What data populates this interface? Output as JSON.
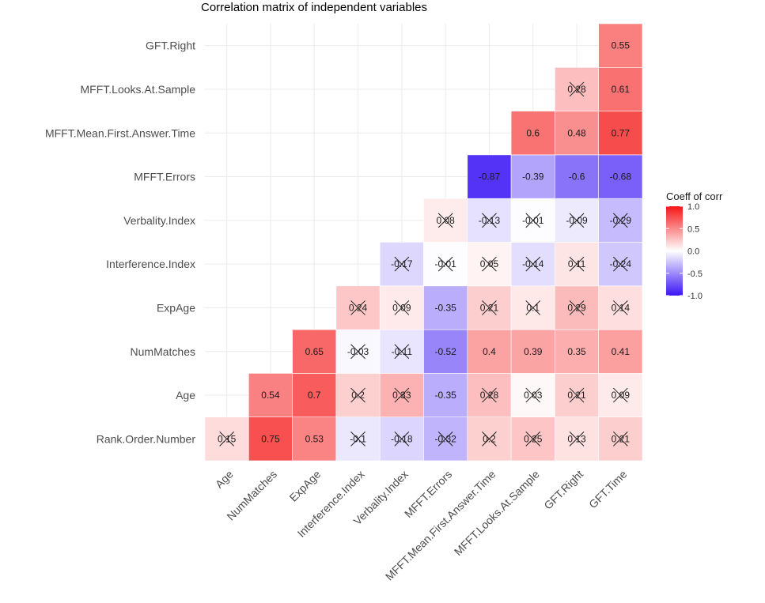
{
  "chart_data": {
    "type": "heatmap",
    "title": "Correlation matrix of independent variables",
    "variables": [
      "Rank.Order.Number",
      "Age",
      "NumMatches",
      "ExpAge",
      "Interference.Index",
      "Verbality.Index",
      "MFFT.Errors",
      "MFFT.Mean.First.Answer.Time",
      "MFFT.Looks.At.Sample",
      "GFT.Right",
      "GFT.Time"
    ],
    "x_categories": [
      "Age",
      "NumMatches",
      "ExpAge",
      "Interference.Index",
      "Verbality.Index",
      "MFFT.Errors",
      "MFFT.Mean.First.Answer.Time",
      "MFFT.Looks.At.Sample",
      "GFT.Right",
      "GFT.Time"
    ],
    "y_categories": [
      "Rank.Order.Number",
      "Age",
      "NumMatches",
      "ExpAge",
      "Interference.Index",
      "Verbality.Index",
      "MFFT.Errors",
      "MFFT.Mean.First.Answer.Time",
      "MFFT.Looks.At.Sample",
      "GFT.Right"
    ],
    "cells": [
      {
        "y": "Rank.Order.Number",
        "x": "Age",
        "label": "0.15",
        "value": 0.15,
        "crossed": true
      },
      {
        "y": "Rank.Order.Number",
        "x": "NumMatches",
        "label": "0.75",
        "value": 0.75,
        "crossed": false
      },
      {
        "y": "Rank.Order.Number",
        "x": "ExpAge",
        "label": "0.53",
        "value": 0.53,
        "crossed": false
      },
      {
        "y": "Rank.Order.Number",
        "x": "Interference.Index",
        "label": "-0.1",
        "value": -0.1,
        "crossed": true
      },
      {
        "y": "Rank.Order.Number",
        "x": "Verbality.Index",
        "label": "-0.18",
        "value": -0.18,
        "crossed": true
      },
      {
        "y": "Rank.Order.Number",
        "x": "MFFT.Errors",
        "label": "-0.32",
        "value": -0.32,
        "crossed": true
      },
      {
        "y": "Rank.Order.Number",
        "x": "MFFT.Mean.First.Answer.Time",
        "label": "0.2",
        "value": 0.2,
        "crossed": true
      },
      {
        "y": "Rank.Order.Number",
        "x": "MFFT.Looks.At.Sample",
        "label": "0.25",
        "value": 0.25,
        "crossed": true
      },
      {
        "y": "Rank.Order.Number",
        "x": "GFT.Right",
        "label": "0.13",
        "value": 0.13,
        "crossed": true
      },
      {
        "y": "Rank.Order.Number",
        "x": "GFT.Time",
        "label": "0.21",
        "value": 0.21,
        "crossed": true
      },
      {
        "y": "Age",
        "x": "NumMatches",
        "label": "0.54",
        "value": 0.54,
        "crossed": false
      },
      {
        "y": "Age",
        "x": "ExpAge",
        "label": "0.7",
        "value": 0.7,
        "crossed": false
      },
      {
        "y": "Age",
        "x": "Interference.Index",
        "label": "0.2",
        "value": 0.2,
        "crossed": true
      },
      {
        "y": "Age",
        "x": "Verbality.Index",
        "label": "0.33",
        "value": 0.33,
        "crossed": true
      },
      {
        "y": "Age",
        "x": "MFFT.Errors",
        "label": "-0.35",
        "value": -0.35,
        "crossed": false
      },
      {
        "y": "Age",
        "x": "MFFT.Mean.First.Answer.Time",
        "label": "0.28",
        "value": 0.28,
        "crossed": true
      },
      {
        "y": "Age",
        "x": "MFFT.Looks.At.Sample",
        "label": "0.03",
        "value": 0.03,
        "crossed": true
      },
      {
        "y": "Age",
        "x": "GFT.Right",
        "label": "0.21",
        "value": 0.21,
        "crossed": true
      },
      {
        "y": "Age",
        "x": "GFT.Time",
        "label": "0.09",
        "value": 0.09,
        "crossed": true
      },
      {
        "y": "NumMatches",
        "x": "ExpAge",
        "label": "0.65",
        "value": 0.65,
        "crossed": false
      },
      {
        "y": "NumMatches",
        "x": "Interference.Index",
        "label": "-0.03",
        "value": -0.03,
        "crossed": true
      },
      {
        "y": "NumMatches",
        "x": "Verbality.Index",
        "label": "-0.11",
        "value": -0.11,
        "crossed": true
      },
      {
        "y": "NumMatches",
        "x": "MFFT.Errors",
        "label": "-0.52",
        "value": -0.52,
        "crossed": false
      },
      {
        "y": "NumMatches",
        "x": "MFFT.Mean.First.Answer.Time",
        "label": "0.4",
        "value": 0.4,
        "crossed": false
      },
      {
        "y": "NumMatches",
        "x": "MFFT.Looks.At.Sample",
        "label": "0.39",
        "value": 0.39,
        "crossed": false
      },
      {
        "y": "NumMatches",
        "x": "GFT.Right",
        "label": "0.35",
        "value": 0.35,
        "crossed": false
      },
      {
        "y": "NumMatches",
        "x": "GFT.Time",
        "label": "0.41",
        "value": 0.41,
        "crossed": false
      },
      {
        "y": "ExpAge",
        "x": "Interference.Index",
        "label": "0.24",
        "value": 0.24,
        "crossed": true
      },
      {
        "y": "ExpAge",
        "x": "Verbality.Index",
        "label": "0.09",
        "value": 0.09,
        "crossed": true
      },
      {
        "y": "ExpAge",
        "x": "MFFT.Errors",
        "label": "-0.35",
        "value": -0.35,
        "crossed": false
      },
      {
        "y": "ExpAge",
        "x": "MFFT.Mean.First.Answer.Time",
        "label": "0.21",
        "value": 0.21,
        "crossed": true
      },
      {
        "y": "ExpAge",
        "x": "MFFT.Looks.At.Sample",
        "label": "0.1",
        "value": 0.1,
        "crossed": true
      },
      {
        "y": "ExpAge",
        "x": "GFT.Right",
        "label": "0.29",
        "value": 0.29,
        "crossed": true
      },
      {
        "y": "ExpAge",
        "x": "GFT.Time",
        "label": "0.14",
        "value": 0.14,
        "crossed": true
      },
      {
        "y": "Interference.Index",
        "x": "Verbality.Index",
        "label": "-0.17",
        "value": -0.17,
        "crossed": true
      },
      {
        "y": "Interference.Index",
        "x": "MFFT.Errors",
        "label": "-0.01",
        "value": -0.01,
        "crossed": true
      },
      {
        "y": "Interference.Index",
        "x": "MFFT.Mean.First.Answer.Time",
        "label": "0.05",
        "value": 0.05,
        "crossed": true
      },
      {
        "y": "Interference.Index",
        "x": "MFFT.Looks.At.Sample",
        "label": "-0.14",
        "value": -0.14,
        "crossed": true
      },
      {
        "y": "Interference.Index",
        "x": "GFT.Right",
        "label": "0.11",
        "value": 0.11,
        "crossed": true
      },
      {
        "y": "Interference.Index",
        "x": "GFT.Time",
        "label": "-0.24",
        "value": -0.24,
        "crossed": true
      },
      {
        "y": "Verbality.Index",
        "x": "MFFT.Errors",
        "label": "0.08",
        "value": 0.08,
        "crossed": true
      },
      {
        "y": "Verbality.Index",
        "x": "MFFT.Mean.First.Answer.Time",
        "label": "-0.13",
        "value": -0.13,
        "crossed": true
      },
      {
        "y": "Verbality.Index",
        "x": "MFFT.Looks.At.Sample",
        "label": "-0.01",
        "value": -0.01,
        "crossed": true
      },
      {
        "y": "Verbality.Index",
        "x": "GFT.Right",
        "label": "-0.09",
        "value": -0.09,
        "crossed": true
      },
      {
        "y": "Verbality.Index",
        "x": "GFT.Time",
        "label": "-0.29",
        "value": -0.29,
        "crossed": true
      },
      {
        "y": "MFFT.Errors",
        "x": "MFFT.Mean.First.Answer.Time",
        "label": "-0.87",
        "value": -0.87,
        "crossed": false
      },
      {
        "y": "MFFT.Errors",
        "x": "MFFT.Looks.At.Sample",
        "label": "-0.39",
        "value": -0.39,
        "crossed": false
      },
      {
        "y": "MFFT.Errors",
        "x": "GFT.Right",
        "label": "-0.6",
        "value": -0.6,
        "crossed": false
      },
      {
        "y": "MFFT.Errors",
        "x": "GFT.Time",
        "label": "-0.68",
        "value": -0.68,
        "crossed": false
      },
      {
        "y": "MFFT.Mean.First.Answer.Time",
        "x": "MFFT.Looks.At.Sample",
        "label": "0.6",
        "value": 0.6,
        "crossed": false
      },
      {
        "y": "MFFT.Mean.First.Answer.Time",
        "x": "GFT.Right",
        "label": "0.48",
        "value": 0.48,
        "crossed": false
      },
      {
        "y": "MFFT.Mean.First.Answer.Time",
        "x": "GFT.Time",
        "label": "0.77",
        "value": 0.77,
        "crossed": false
      },
      {
        "y": "MFFT.Looks.At.Sample",
        "x": "GFT.Right",
        "label": "0.28",
        "value": 0.28,
        "crossed": true
      },
      {
        "y": "MFFT.Looks.At.Sample",
        "x": "GFT.Time",
        "label": "0.61",
        "value": 0.61,
        "crossed": false
      },
      {
        "y": "GFT.Right",
        "x": "GFT.Time",
        "label": "0.55",
        "value": 0.55,
        "crossed": false
      }
    ],
    "color_scale": {
      "low": "#3b15f5",
      "mid": "#ffffff",
      "high": "#f51616",
      "limits": [
        -1,
        1
      ]
    },
    "legend": {
      "title": "Coeff of corr",
      "ticks": [
        {
          "value": 1.0,
          "label": "1.0"
        },
        {
          "value": 0.5,
          "label": "0.5"
        },
        {
          "value": 0.0,
          "label": "0.0"
        },
        {
          "value": -0.5,
          "label": "-0.5"
        },
        {
          "value": -1.0,
          "label": "-1.0"
        }
      ],
      "position": "right"
    },
    "grid": true
  }
}
